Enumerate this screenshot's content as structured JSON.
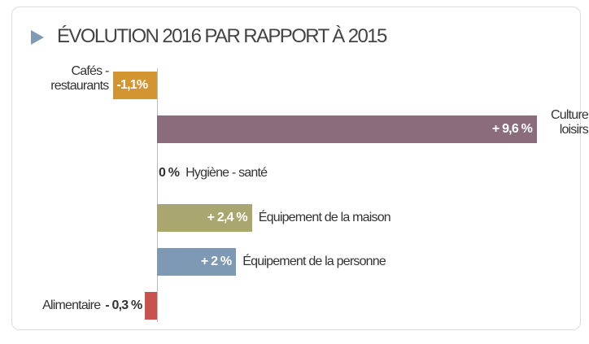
{
  "chart_data": {
    "type": "bar",
    "orientation": "horizontal",
    "title": "ÉVOLUTION 2016 PAR RAPPORT À 2015",
    "categories": [
      "Cafés - restaurants",
      "Culture loisirs",
      "Hygiène - santé",
      "Équipement de la maison",
      "Équipement de la personne",
      "Alimentaire"
    ],
    "values": [
      -1.1,
      9.6,
      0,
      2.4,
      2,
      -0.3
    ],
    "value_labels": [
      "-1,1%",
      "+ 9,6 %",
      "0 %",
      "+ 2,4 %",
      "+ 2 %",
      "- 0,3 %"
    ],
    "colors": [
      "#d39532",
      "#8b6c7b",
      "#999999",
      "#aaa66f",
      "#7e99b4",
      "#c8534e"
    ]
  }
}
